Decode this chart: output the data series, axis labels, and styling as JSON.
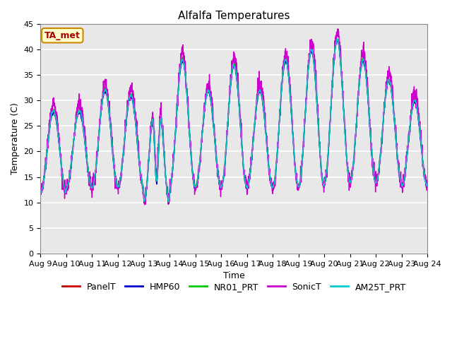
{
  "title": "Alfalfa Temperatures",
  "ylabel": "Temperature (C)",
  "xlabel": "Time",
  "annotation": "TA_met",
  "ylim": [
    0,
    45
  ],
  "yticks": [
    0,
    5,
    10,
    15,
    20,
    25,
    30,
    35,
    40,
    45
  ],
  "xtick_labels": [
    "Aug 9",
    "Aug 10",
    "Aug 11",
    "Aug 12",
    "Aug 13",
    "Aug 14",
    "Aug 15",
    "Aug 16",
    "Aug 17",
    "Aug 18",
    "Aug 19",
    "Aug 20",
    "Aug 21",
    "Aug 22",
    "Aug 23",
    "Aug 24"
  ],
  "series": {
    "PanelT": {
      "color": "#cc0000",
      "lw": 1.0
    },
    "HMP60": {
      "color": "#0000cc",
      "lw": 1.0
    },
    "NR01_PRT": {
      "color": "#00cc00",
      "lw": 1.0
    },
    "SonicT": {
      "color": "#cc00cc",
      "lw": 1.0
    },
    "AM25T_PRT": {
      "color": "#00cccc",
      "lw": 1.0
    }
  },
  "bg_inner": "#e8e8e8",
  "bg_outer": "#ffffff",
  "grid_color": "#ffffff",
  "title_fontsize": 11,
  "label_fontsize": 9,
  "tick_fontsize": 8,
  "legend_fontsize": 9
}
